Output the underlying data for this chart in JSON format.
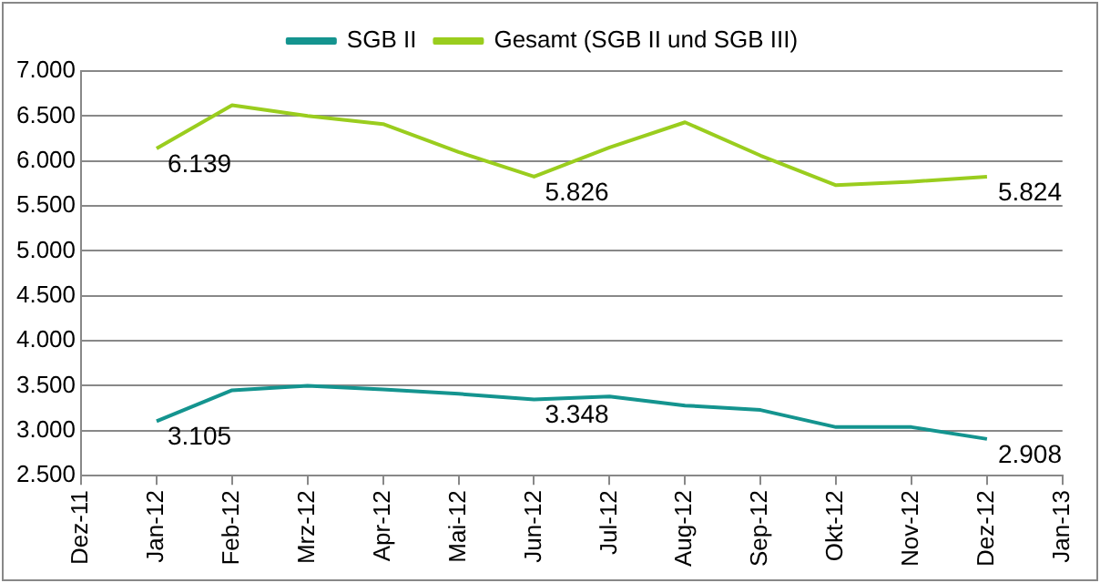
{
  "chart_data": {
    "type": "line",
    "x": [
      "2012-01",
      "2012-02",
      "2012-03",
      "2012-04",
      "2012-05",
      "2012-06",
      "2012-07",
      "2012-08",
      "2012-09",
      "2012-10",
      "2012-11",
      "2012-12"
    ],
    "series": [
      {
        "name": "SGB II",
        "color": "#14948f",
        "values": [
          3105,
          3450,
          3500,
          3460,
          3410,
          3348,
          3380,
          3280,
          3230,
          3040,
          3040,
          2908
        ],
        "value_labels": [
          "3.105",
          null,
          null,
          null,
          null,
          "3.348",
          null,
          null,
          null,
          null,
          null,
          "2.908"
        ]
      },
      {
        "name": "Gesamt (SGB II und SGB III)",
        "color": "#9acd1e",
        "values": [
          6139,
          6620,
          6500,
          6410,
          6100,
          5826,
          6150,
          6430,
          6060,
          5730,
          5770,
          5824
        ],
        "value_labels": [
          "6.139",
          null,
          null,
          null,
          null,
          "5.826",
          null,
          null,
          null,
          null,
          null,
          "5.824"
        ]
      }
    ],
    "xlim": [
      "2011-12",
      "2013-01"
    ],
    "xticks": [
      {
        "value": "2011-12",
        "label": "Dez-11"
      },
      {
        "value": "2012-01",
        "label": "Jan-12"
      },
      {
        "value": "2012-02",
        "label": "Feb-12"
      },
      {
        "value": "2012-03",
        "label": "Mrz-12"
      },
      {
        "value": "2012-04",
        "label": "Apr-12"
      },
      {
        "value": "2012-05",
        "label": "Mai-12"
      },
      {
        "value": "2012-06",
        "label": "Jun-12"
      },
      {
        "value": "2012-07",
        "label": "Jul-12"
      },
      {
        "value": "2012-08",
        "label": "Aug-12"
      },
      {
        "value": "2012-09",
        "label": "Sep-12"
      },
      {
        "value": "2012-10",
        "label": "Okt-12"
      },
      {
        "value": "2012-11",
        "label": "Nov-12"
      },
      {
        "value": "2012-12",
        "label": "Dez-12"
      },
      {
        "value": "2013-01",
        "label": "Jan-13"
      }
    ],
    "ylim": [
      2500,
      7000
    ],
    "yticks": [
      {
        "value": 2500,
        "label": "2.500"
      },
      {
        "value": 3000,
        "label": "3.000"
      },
      {
        "value": 3500,
        "label": "3.500"
      },
      {
        "value": 4000,
        "label": "4.000"
      },
      {
        "value": 4500,
        "label": "4.500"
      },
      {
        "value": 5000,
        "label": "5.000"
      },
      {
        "value": 5500,
        "label": "5.500"
      },
      {
        "value": 6000,
        "label": "6.000"
      },
      {
        "value": 6500,
        "label": "6.500"
      },
      {
        "value": 7000,
        "label": "7.000"
      }
    ],
    "grid": "y",
    "legend": "top",
    "marker": "none",
    "line_style": "solid"
  }
}
